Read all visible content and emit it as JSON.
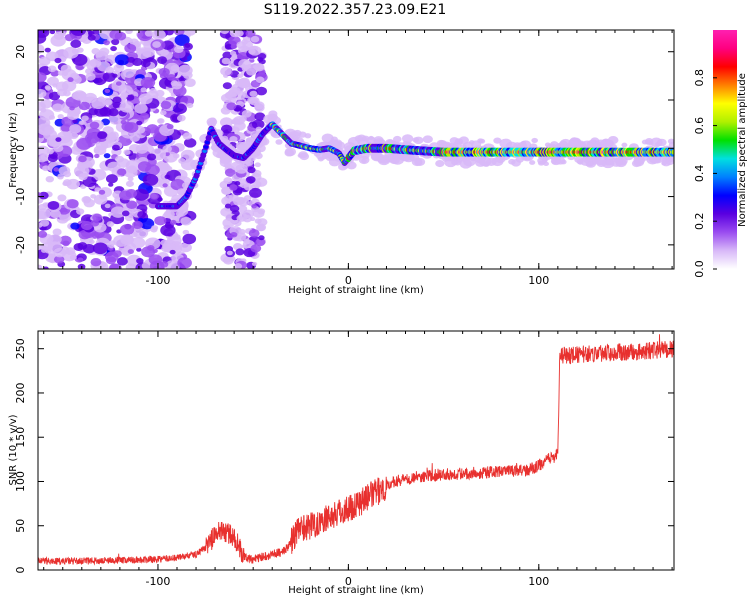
{
  "figure": {
    "title": "S119.2022.357.23.09.E21"
  },
  "chart_data": [
    {
      "type": "heatmap",
      "xlabel": "Height of straight line (km)",
      "ylabel": "Frequency (Hz)",
      "xlim": [
        -163,
        171
      ],
      "ylim": [
        -25,
        24.5
      ],
      "xticks": [
        -100,
        0,
        100
      ],
      "yticks": [
        -20,
        -10,
        0,
        10,
        20
      ],
      "grid": false,
      "colorbar": {
        "label": "Normalized spectral amplitude",
        "range": [
          0,
          1
        ],
        "ticks": [
          0.0,
          0.2,
          0.4,
          0.6,
          0.8
        ],
        "colors": [
          "#ffffff",
          "#d8b8f8",
          "#9a4cf0",
          "#5a00e0",
          "#0000ff",
          "#0080ff",
          "#00e0e0",
          "#00e000",
          "#b0f000",
          "#ffff00",
          "#ff8000",
          "#ff0000",
          "#ff0080",
          "#ff20b0"
        ]
      },
      "ridge": {
        "x": [
          -100,
          -90,
          -85,
          -80,
          -75,
          -72,
          -68,
          -65,
          -60,
          -55,
          -50,
          -45,
          -40,
          -35,
          -30,
          -25,
          -20,
          -15,
          -10,
          -5,
          -2,
          0,
          3,
          10,
          20,
          30,
          50,
          80,
          110,
          140,
          171
        ],
        "y": [
          -12,
          -12,
          -10,
          -6,
          0,
          4,
          1,
          0,
          -1.5,
          -2,
          0,
          3,
          5,
          3,
          1,
          0.5,
          0,
          -0.3,
          0,
          -1,
          -3,
          -2,
          -0.5,
          0,
          0,
          -0.3,
          -0.8,
          -0.8,
          -0.8,
          -0.8,
          -0.8
        ]
      }
    },
    {
      "type": "line",
      "xlabel": "Height of straight line (km)",
      "ylabel": "SNR (10 * v/v)",
      "xlim": [
        -163,
        171
      ],
      "ylim": [
        0,
        270
      ],
      "xticks": [
        -100,
        0,
        100
      ],
      "yticks": [
        0,
        50,
        100,
        150,
        200,
        250
      ],
      "grid": false,
      "series": [
        {
          "color": "#e8302e",
          "x": [
            -163,
            -140,
            -120,
            -100,
            -90,
            -80,
            -75,
            -70,
            -66,
            -62,
            -58,
            -55,
            -50,
            -45,
            -40,
            -35,
            -32,
            -28,
            -24,
            -20,
            -15,
            -10,
            -5,
            0,
            5,
            10,
            15,
            20,
            25,
            30,
            40,
            50,
            60,
            70,
            80,
            90,
            95,
            100,
            105,
            110,
            111,
            112,
            120,
            130,
            140,
            150,
            160,
            171
          ],
          "y": [
            10,
            10,
            11,
            12,
            14,
            18,
            25,
            40,
            45,
            40,
            30,
            15,
            12,
            15,
            18,
            20,
            25,
            40,
            48,
            50,
            55,
            60,
            65,
            70,
            75,
            82,
            88,
            95,
            100,
            103,
            106,
            108,
            109,
            110,
            111,
            112,
            113,
            118,
            125,
            130,
            240,
            242,
            243,
            245,
            246,
            246,
            248,
            250
          ]
        }
      ]
    }
  ]
}
